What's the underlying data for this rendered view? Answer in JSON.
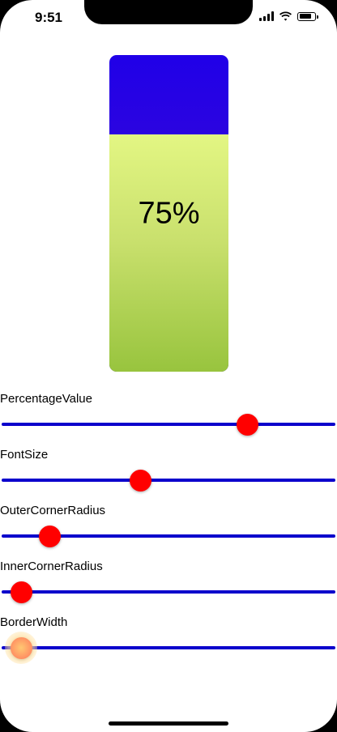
{
  "status_bar": {
    "time": "9:51",
    "signal_icon": "cellular-signal-icon",
    "wifi_icon": "wifi-icon",
    "battery_icon": "battery-icon",
    "battery_level": 0.85
  },
  "gauge": {
    "percentage_text": "75%",
    "fill_fraction": 0.75,
    "top_color": "#2000e8",
    "fill_color": "#c9e06d"
  },
  "controls": [
    {
      "label": "PercentageValue",
      "value": 0.75
    },
    {
      "label": "FontSize",
      "value": 0.41
    },
    {
      "label": "OuterCornerRadius",
      "value": 0.12
    },
    {
      "label": "InnerCornerRadius",
      "value": 0.03
    },
    {
      "label": "BorderWidth",
      "value": 0.03
    }
  ],
  "colors": {
    "track": "#0b00cc",
    "thumb": "#ff0000"
  }
}
